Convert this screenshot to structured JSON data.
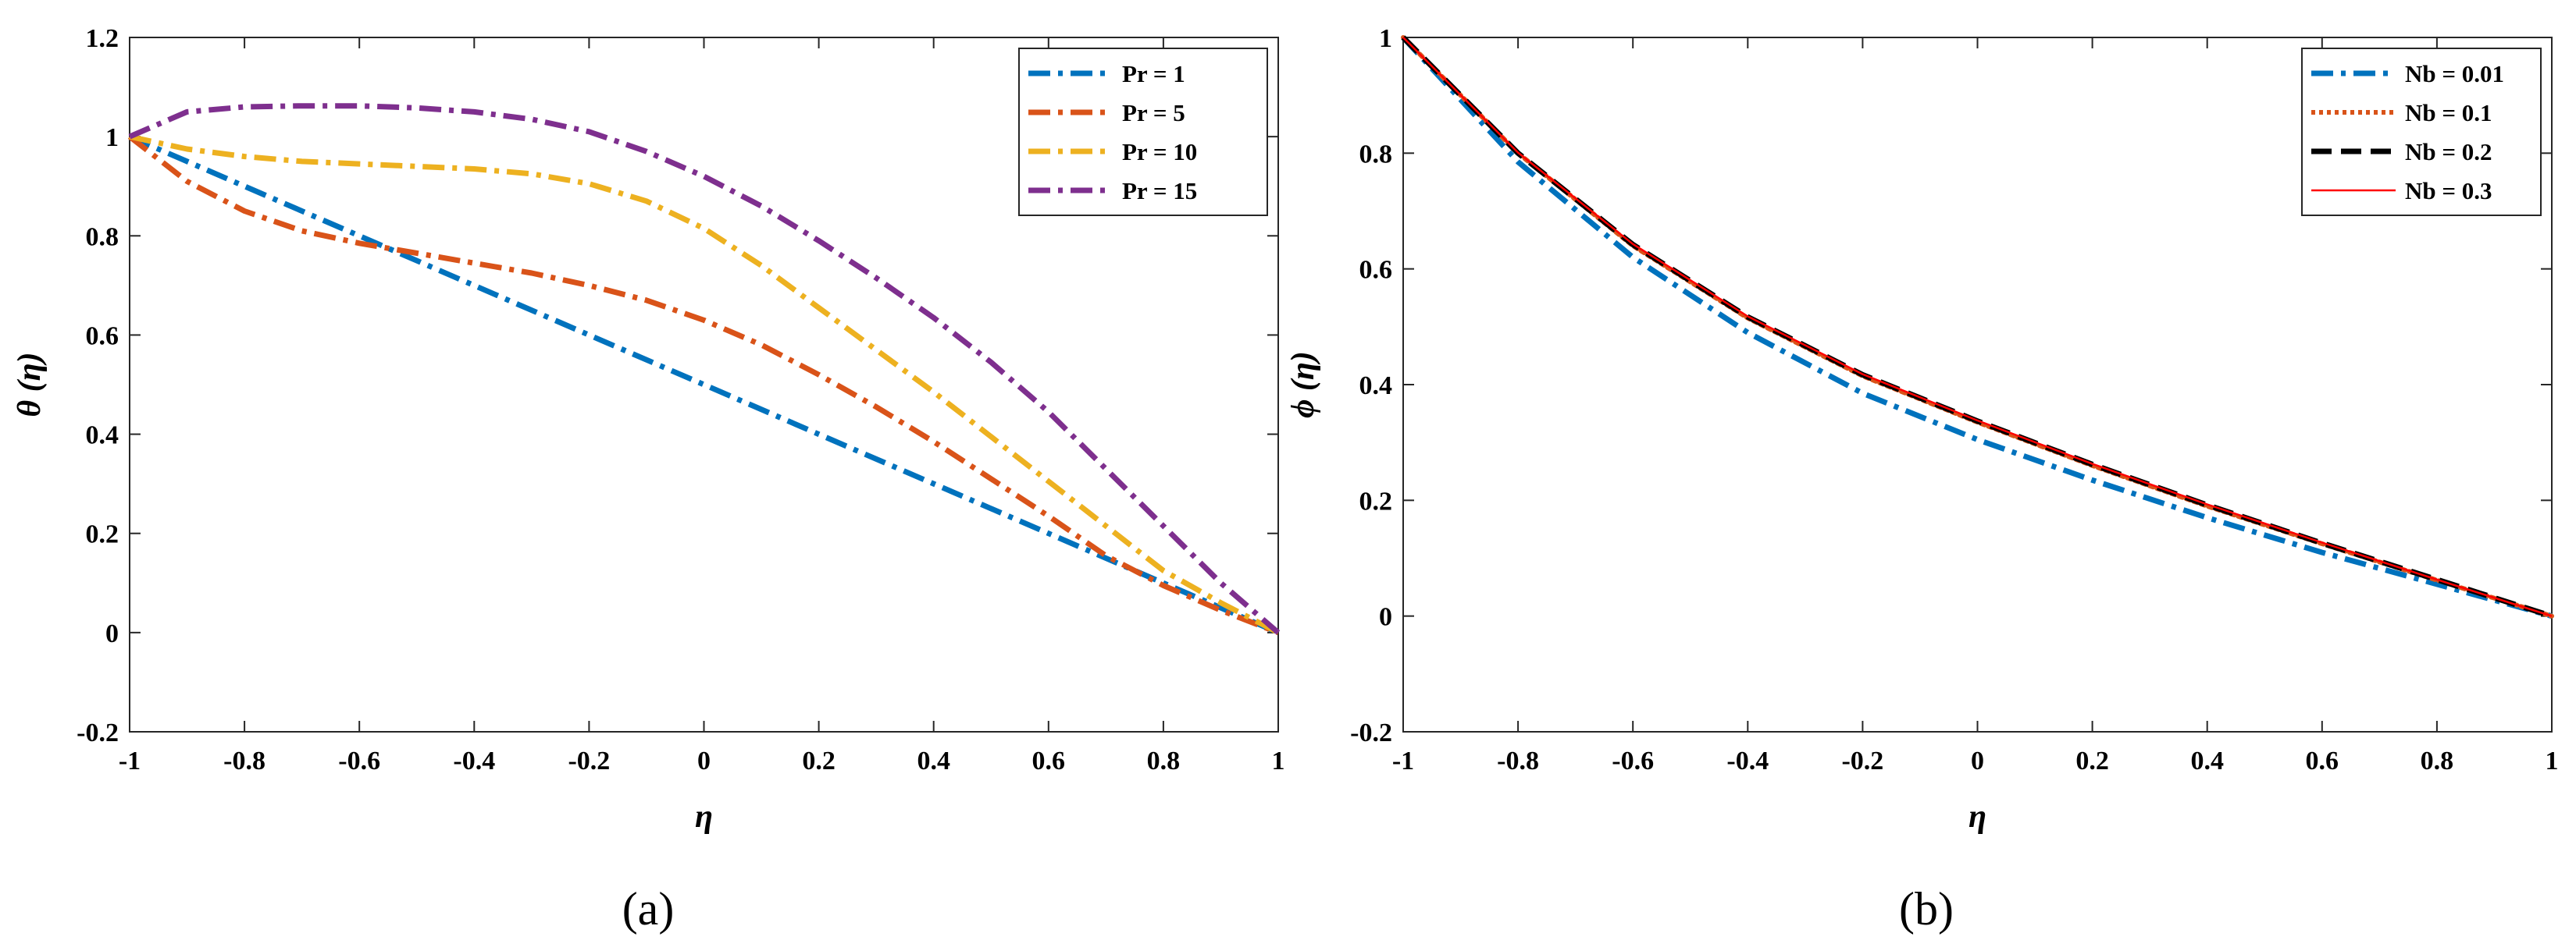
{
  "chart_data": [
    {
      "type": "line",
      "panel_label": "(a)",
      "title": "",
      "xlabel": "η",
      "ylabel": "θ (η)",
      "xlim": [
        -1,
        1
      ],
      "ylim": [
        -0.2,
        1.2
      ],
      "xticks": [
        "-1",
        "-0.8",
        "-0.6",
        "-0.4",
        "-0.2",
        "0",
        "0.2",
        "0.4",
        "0.6",
        "0.8",
        "1"
      ],
      "yticks": [
        "-0.2",
        "0",
        "0.2",
        "0.4",
        "0.6",
        "0.8",
        "1",
        "1.2"
      ],
      "legend_position": "top-right",
      "series": [
        {
          "name": "Pr = 1",
          "color": "#0072BD",
          "dash": "dashdot",
          "x": [
            -1,
            -0.8,
            -0.6,
            -0.4,
            -0.2,
            0,
            0.2,
            0.4,
            0.6,
            0.8,
            1
          ],
          "y": [
            1.0,
            0.9,
            0.8,
            0.7,
            0.6,
            0.5,
            0.4,
            0.3,
            0.2,
            0.1,
            0.0
          ]
        },
        {
          "name": "Pr = 5",
          "color": "#D95319",
          "dash": "dashdot",
          "x": [
            -1,
            -0.9,
            -0.8,
            -0.7,
            -0.6,
            -0.5,
            -0.4,
            -0.3,
            -0.2,
            -0.1,
            0,
            0.1,
            0.2,
            0.3,
            0.4,
            0.5,
            0.6,
            0.7,
            0.8,
            0.9,
            1
          ],
          "y": [
            1.0,
            0.91,
            0.85,
            0.81,
            0.785,
            0.765,
            0.745,
            0.725,
            0.7,
            0.67,
            0.63,
            0.58,
            0.52,
            0.455,
            0.385,
            0.31,
            0.235,
            0.155,
            0.095,
            0.045,
            0.0
          ]
        },
        {
          "name": "Pr = 10",
          "color": "#EDB120",
          "dash": "dashdot",
          "x": [
            -1,
            -0.9,
            -0.8,
            -0.7,
            -0.6,
            -0.5,
            -0.4,
            -0.3,
            -0.2,
            -0.1,
            0,
            0.1,
            0.2,
            0.3,
            0.4,
            0.5,
            0.6,
            0.7,
            0.8,
            0.9,
            1
          ],
          "y": [
            1.0,
            0.975,
            0.96,
            0.95,
            0.945,
            0.94,
            0.935,
            0.925,
            0.905,
            0.87,
            0.815,
            0.74,
            0.655,
            0.57,
            0.485,
            0.395,
            0.305,
            0.215,
            0.125,
            0.06,
            0.0
          ]
        },
        {
          "name": "Pr = 15",
          "color": "#7E2F8E",
          "dash": "dashdot",
          "x": [
            -1,
            -0.9,
            -0.8,
            -0.7,
            -0.6,
            -0.5,
            -0.4,
            -0.3,
            -0.2,
            -0.1,
            0,
            0.1,
            0.2,
            0.3,
            0.4,
            0.5,
            0.6,
            0.7,
            0.8,
            0.9,
            1
          ],
          "y": [
            1.0,
            1.05,
            1.06,
            1.062,
            1.062,
            1.058,
            1.05,
            1.035,
            1.01,
            0.97,
            0.92,
            0.86,
            0.79,
            0.715,
            0.635,
            0.545,
            0.445,
            0.33,
            0.215,
            0.1,
            0.0
          ]
        }
      ]
    },
    {
      "type": "line",
      "panel_label": "(b)",
      "title": "",
      "xlabel": "η",
      "ylabel": "ϕ (η)",
      "xlim": [
        -1,
        1
      ],
      "ylim": [
        -0.2,
        1
      ],
      "xticks": [
        "-1",
        "-0.8",
        "-0.6",
        "-0.4",
        "-0.2",
        "0",
        "0.2",
        "0.4",
        "0.6",
        "0.8",
        "1"
      ],
      "yticks": [
        "-0.2",
        "0",
        "0.2",
        "0.4",
        "0.6",
        "0.8",
        "1"
      ],
      "legend_position": "top-right",
      "series": [
        {
          "name": "Nb = 0.01",
          "color": "#0072BD",
          "dash": "dashdot",
          "x": [
            -1,
            -0.8,
            -0.6,
            -0.4,
            -0.2,
            0,
            0.2,
            0.4,
            0.6,
            0.8,
            1
          ],
          "y": [
            1.0,
            0.785,
            0.62,
            0.49,
            0.385,
            0.305,
            0.235,
            0.17,
            0.11,
            0.055,
            0.0
          ]
        },
        {
          "name": "Nb = 0.1",
          "color": "#D95319",
          "dash": "dotted",
          "x": [
            -1,
            -0.8,
            -0.6,
            -0.4,
            -0.2,
            0,
            0.2,
            0.4,
            0.6,
            0.8,
            1
          ],
          "y": [
            1.0,
            0.8,
            0.64,
            0.515,
            0.415,
            0.335,
            0.26,
            0.19,
            0.125,
            0.062,
            0.0
          ]
        },
        {
          "name": "Nb = 0.2",
          "color": "#000000",
          "dash": "dashed",
          "x": [
            -1,
            -0.8,
            -0.6,
            -0.4,
            -0.2,
            0,
            0.2,
            0.4,
            0.6,
            0.8,
            1
          ],
          "y": [
            1.0,
            0.8,
            0.642,
            0.517,
            0.417,
            0.337,
            0.262,
            0.192,
            0.126,
            0.063,
            0.0
          ]
        },
        {
          "name": "Nb = 0.3",
          "color": "#FF0000",
          "dash": "solid",
          "x": [
            -1,
            -0.8,
            -0.6,
            -0.4,
            -0.2,
            0,
            0.2,
            0.4,
            0.6,
            0.8,
            1
          ],
          "y": [
            1.0,
            0.801,
            0.643,
            0.518,
            0.418,
            0.338,
            0.263,
            0.193,
            0.127,
            0.063,
            0.0
          ]
        }
      ]
    }
  ]
}
